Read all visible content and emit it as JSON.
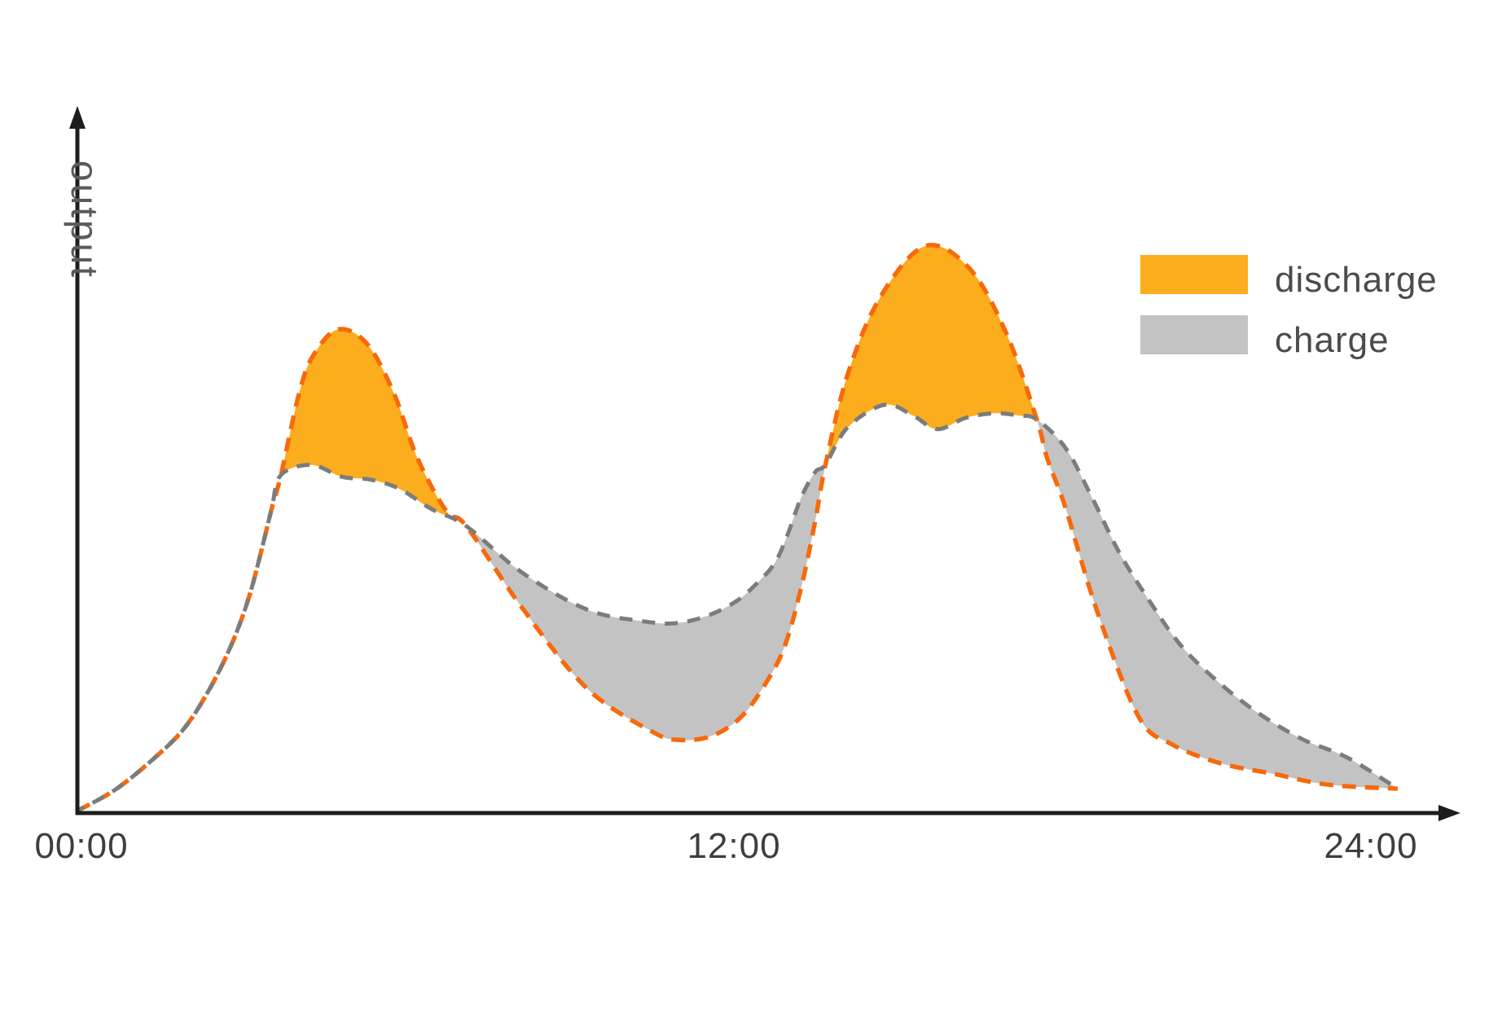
{
  "chart_data": {
    "type": "area",
    "title": "",
    "y_axis": {
      "label": "output",
      "scale_note": "unlabeled relative scale, 0-100 estimated from pixels"
    },
    "x_axis": {
      "ticks": [
        "00:00",
        "12:00",
        "24:00"
      ],
      "unit": "time of day",
      "range_hours": [
        0,
        24
      ]
    },
    "legend_position": "upper right",
    "legend": [
      {
        "label": "discharge",
        "color": "#FBAD1E"
      },
      {
        "label": "charge",
        "color": "#C3C3C3"
      }
    ],
    "colors": {
      "axis": "#1d1d1d",
      "tick_text": "#3e3e3e",
      "legend_text": "#4b4b4b",
      "axis_label_text": "#5a5a5a",
      "background": "#ffffff"
    },
    "series": [
      {
        "name": "orange-dashed-curve",
        "dash_color": "#F8690B",
        "points": [
          [
            0,
            0.4
          ],
          [
            0.67,
            4
          ],
          [
            1.33,
            9.1
          ],
          [
            1.93,
            14.8
          ],
          [
            2.41,
            22
          ],
          [
            2.81,
            29.9
          ],
          [
            3.11,
            37.8
          ],
          [
            3.33,
            45.7
          ],
          [
            3.53,
            53.6
          ],
          [
            3.7,
            59.6
          ],
          [
            4.04,
            74.4
          ],
          [
            4.3,
            80.9
          ],
          [
            4.74,
            85.3
          ],
          [
            5.26,
            82.8
          ],
          [
            5.75,
            74.1
          ],
          [
            6.18,
            62.6
          ],
          [
            6.71,
            53.2
          ],
          [
            7.07,
            50.6
          ],
          [
            8.07,
            36.4
          ],
          [
            9.26,
            22
          ],
          [
            10.44,
            14.4
          ],
          [
            10.93,
            12.9
          ],
          [
            11.53,
            13.6
          ],
          [
            12.07,
            17
          ],
          [
            12.52,
            23
          ],
          [
            12.86,
            29.5
          ],
          [
            13.16,
            39.9
          ],
          [
            13.41,
            51.4
          ],
          [
            13.6,
            61.5
          ],
          [
            14,
            77.3
          ],
          [
            14.59,
            90.9
          ],
          [
            15.41,
            100
          ],
          [
            16.22,
            96
          ],
          [
            16.89,
            84.5
          ],
          [
            17.44,
            69.4
          ],
          [
            17.63,
            62.5
          ],
          [
            17.96,
            53.9
          ],
          [
            18.55,
            35.2
          ],
          [
            19.29,
            17
          ],
          [
            19.88,
            12.2
          ],
          [
            20.77,
            8.8
          ],
          [
            21.75,
            6.9
          ],
          [
            22.74,
            5
          ],
          [
            24,
            4.3
          ]
        ]
      },
      {
        "name": "gray-dashed-curve",
        "dash_color": "#7B7C7E",
        "points": [
          [
            0,
            0.4
          ],
          [
            0.67,
            4
          ],
          [
            1.33,
            9.1
          ],
          [
            1.93,
            14.8
          ],
          [
            2.41,
            22
          ],
          [
            2.81,
            29.9
          ],
          [
            3.11,
            37.8
          ],
          [
            3.33,
            45.7
          ],
          [
            3.53,
            53.6
          ],
          [
            3.7,
            59.6
          ],
          [
            4.25,
            61.4
          ],
          [
            4.81,
            59.3
          ],
          [
            5.33,
            58.8
          ],
          [
            5.85,
            57.2
          ],
          [
            6.44,
            53.6
          ],
          [
            7.07,
            50.6
          ],
          [
            8.07,
            42.5
          ],
          [
            9.26,
            35.9
          ],
          [
            10.3,
            33.8
          ],
          [
            10.89,
            33.5
          ],
          [
            11.48,
            34.9
          ],
          [
            12,
            37.5
          ],
          [
            12.37,
            40.7
          ],
          [
            12.67,
            44
          ],
          [
            12.89,
            48.6
          ],
          [
            13.16,
            55.7
          ],
          [
            13.41,
            60.1
          ],
          [
            13.6,
            61.5
          ],
          [
            14,
            68
          ],
          [
            14.67,
            72
          ],
          [
            15.19,
            70.1
          ],
          [
            15.63,
            67.7
          ],
          [
            16.15,
            69.7
          ],
          [
            16.67,
            70.5
          ],
          [
            17.11,
            70.1
          ],
          [
            17.44,
            69.4
          ],
          [
            17.96,
            64.4
          ],
          [
            18.44,
            55.7
          ],
          [
            18.93,
            46.1
          ],
          [
            19.44,
            38.1
          ],
          [
            20.03,
            29.9
          ],
          [
            20.67,
            23.7
          ],
          [
            21.41,
            18
          ],
          [
            22.25,
            13.1
          ],
          [
            23.08,
            9.8
          ],
          [
            24,
            4.3
          ]
        ]
      }
    ],
    "fills": [
      {
        "legend": "discharge",
        "from_hour": 3.7,
        "to_hour": 7.07,
        "upper": 0,
        "lower": 1
      },
      {
        "legend": "charge",
        "from_hour": 7.07,
        "to_hour": 13.6,
        "upper": 1,
        "lower": 0
      },
      {
        "legend": "discharge",
        "from_hour": 13.6,
        "to_hour": 17.44,
        "upper": 0,
        "lower": 1
      },
      {
        "legend": "charge",
        "from_hour": 17.44,
        "to_hour": 24,
        "upper": 1,
        "lower": 0
      }
    ]
  }
}
